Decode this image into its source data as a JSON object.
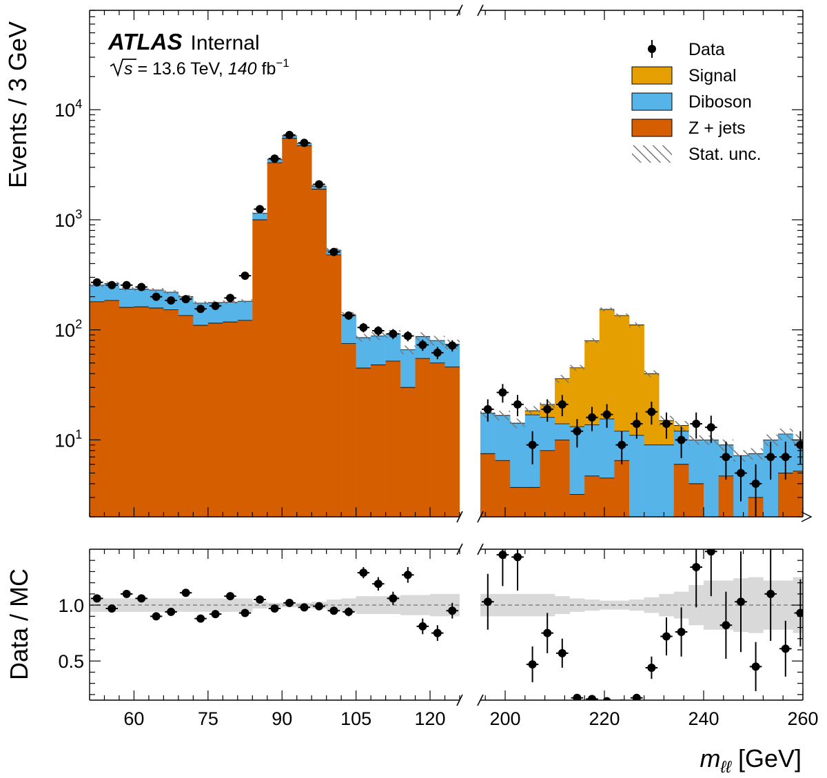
{
  "labels": {
    "experiment": "ATLAS",
    "status": "Internal",
    "energy_prefix": "s",
    "energy_text": " = 13.6 TeV, ",
    "lumi_value": "140",
    "lumi_unit": " fb",
    "lumi_exp": "−1"
  },
  "colors": {
    "signal": "#e69f00",
    "diboson": "#56b4e9",
    "zjets": "#d55e00",
    "band": "#d9d9d9",
    "hatch": "#777777"
  },
  "chart_data": {
    "type": "histogram-stacked",
    "xlabel_main": "m",
    "xlabel_sub": "ℓℓ",
    "xlabel_unit": " [GeV]",
    "ylabel_top": "Events / 3 GeV",
    "ylabel_bottom": "Data / MC",
    "y_scale": "log",
    "ylim_top": [
      2,
      80000
    ],
    "ylim_ratio": [
      0.15,
      1.5
    ],
    "x_segments": [
      {
        "range": [
          51,
          126
        ],
        "ticks": [
          60,
          75,
          90,
          105,
          120
        ]
      },
      {
        "range": [
          195,
          260
        ],
        "ticks": [
          200,
          220,
          240,
          260
        ]
      }
    ],
    "yticks_top": [
      {
        "value": 10000,
        "base": "10",
        "exp": "4"
      },
      {
        "value": 1000,
        "base": "10",
        "exp": "3"
      },
      {
        "value": 100,
        "base": "10",
        "exp": "2"
      },
      {
        "value": 10,
        "base": "10",
        "exp": "1"
      }
    ],
    "yticks_ratio": [
      {
        "value": 0.5,
        "label": "0.5"
      },
      {
        "value": 1.0,
        "label": "1.0"
      }
    ],
    "legend": [
      {
        "key": "data",
        "label": "Data"
      },
      {
        "key": "signal",
        "label": "Signal"
      },
      {
        "key": "diboson",
        "label": "Diboson"
      },
      {
        "key": "zjets",
        "label": "Z + jets"
      },
      {
        "key": "stat",
        "label": "Stat. unc."
      }
    ],
    "segment1": {
      "bins": [
        51,
        54,
        57,
        60,
        63,
        66,
        69,
        72,
        75,
        78,
        81,
        84,
        87,
        90,
        93,
        96,
        99,
        102,
        105,
        108,
        111,
        114,
        117,
        120,
        123,
        126
      ],
      "zjets": [
        180,
        185,
        160,
        162,
        158,
        152,
        135,
        110,
        115,
        118,
        122,
        1000,
        3300,
        5500,
        4700,
        1900,
        480,
        75,
        45,
        48,
        52,
        30,
        55,
        50,
        46
      ],
      "diboson": [
        75,
        78,
        75,
        73,
        72,
        68,
        65,
        65,
        62,
        60,
        60,
        150,
        250,
        300,
        250,
        120,
        50,
        62,
        40,
        40,
        40,
        36,
        32,
        30,
        28
      ],
      "stat_unc": [
        0.04,
        0.04,
        0.04,
        0.04,
        0.04,
        0.04,
        0.04,
        0.04,
        0.04,
        0.04,
        0.04,
        0.03,
        0.02,
        0.02,
        0.02,
        0.03,
        0.05,
        0.06,
        0.08,
        0.08,
        0.08,
        0.09,
        0.09,
        0.1,
        0.1
      ],
      "data_y": [
        270,
        255,
        255,
        245,
        200,
        185,
        190,
        155,
        165,
        195,
        310,
        1250,
        3600,
        5900,
        5000,
        2100,
        510,
        135,
        105,
        98,
        92,
        88,
        73,
        62,
        72
      ],
      "ratio": [
        1.06,
        0.97,
        1.1,
        1.06,
        0.9,
        0.94,
        1.11,
        0.88,
        0.92,
        1.08,
        0.93,
        1.05,
        0.97,
        1.02,
        0.98,
        0.99,
        0.95,
        0.94,
        1.29,
        1.19,
        1.06,
        1.27,
        0.81,
        0.75,
        0.95
      ],
      "ratio_err": [
        0.03,
        0.03,
        0.03,
        0.03,
        0.03,
        0.03,
        0.03,
        0.03,
        0.03,
        0.03,
        0.03,
        0.01,
        0.01,
        0.01,
        0.01,
        0.01,
        0.02,
        0.04,
        0.05,
        0.06,
        0.06,
        0.07,
        0.07,
        0.07,
        0.07
      ],
      "band": [
        0.06,
        0.06,
        0.06,
        0.06,
        0.06,
        0.06,
        0.06,
        0.06,
        0.06,
        0.06,
        0.06,
        0.03,
        0.02,
        0.02,
        0.02,
        0.03,
        0.05,
        0.06,
        0.08,
        0.08,
        0.08,
        0.09,
        0.09,
        0.1,
        0.1
      ]
    },
    "segment2": {
      "bins": [
        195,
        198,
        201,
        204,
        207,
        210,
        213,
        216,
        219,
        222,
        225,
        228,
        231,
        234,
        237,
        240,
        243,
        246,
        249,
        252,
        255,
        258,
        261
      ],
      "zjets": [
        7.5,
        6.5,
        3.7,
        3.7,
        8,
        10,
        3.2,
        4.7,
        4.5,
        6.5,
        2,
        2,
        2,
        6,
        4,
        2,
        4.7,
        2,
        3,
        2,
        5,
        5.2
      ],
      "diboson": [
        10,
        10.2,
        10.5,
        13.2,
        8,
        4,
        10,
        9,
        11,
        5.5,
        9,
        7,
        7,
        6,
        6,
        8,
        4.3,
        5.2,
        4.5,
        8,
        6.3,
        4.8
      ],
      "signal": [
        0,
        0,
        0,
        1.5,
        5,
        22,
        32,
        66,
        138,
        123,
        100,
        31,
        6,
        1.5,
        0,
        0,
        0,
        0,
        0,
        0,
        0,
        0
      ],
      "stat_unc": [
        0.1,
        0.1,
        0.1,
        0.1,
        0.1,
        0.08,
        0.06,
        0.05,
        0.04,
        0.04,
        0.05,
        0.07,
        0.1,
        0.1,
        0.1,
        0.1,
        0.12,
        0.12,
        0.12,
        0.12,
        0.12,
        0.12
      ],
      "data_y": [
        19,
        27,
        21,
        9,
        19,
        21,
        12,
        16,
        17,
        9,
        14,
        18,
        14,
        10,
        14,
        13,
        7,
        5,
        4,
        7,
        7,
        9
      ],
      "ratio": [
        1.03,
        1.45,
        1.43,
        0.47,
        0.75,
        0.57,
        0.17,
        0.16,
        0.14,
        0.12,
        0.17,
        0.44,
        0.72,
        0.76,
        1.34,
        1.48,
        0.82,
        1.03,
        0.45,
        1.1,
        0.61,
        0.93
      ],
      "ratio_err": [
        0.25,
        0.28,
        0.3,
        0.16,
        0.18,
        0.13,
        0.02,
        0.02,
        0.02,
        0.02,
        0.02,
        0.1,
        0.17,
        0.22,
        0.36,
        0.4,
        0.3,
        0.45,
        0.22,
        0.42,
        0.25,
        0.3
      ],
      "band": [
        0.1,
        0.1,
        0.1,
        0.1,
        0.1,
        0.08,
        0.06,
        0.05,
        0.04,
        0.04,
        0.05,
        0.07,
        0.1,
        0.12,
        0.18,
        0.22,
        0.22,
        0.24,
        0.25,
        0.22,
        0.22,
        0.25
      ]
    }
  }
}
